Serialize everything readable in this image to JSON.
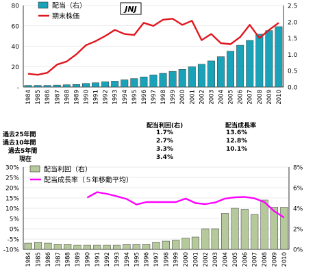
{
  "chart_data": [
    {
      "type": "bar+line",
      "badge": "JNJ",
      "categories": [
        "1984",
        "1985",
        "1986",
        "1987",
        "1988",
        "1989",
        "1990",
        "1991",
        "1992",
        "1993",
        "1994",
        "1995",
        "1996",
        "1997",
        "1998",
        "1999",
        "2000",
        "2001",
        "2002",
        "2003",
        "2004",
        "2005",
        "2006",
        "2007",
        "2008",
        "2009",
        "2010"
      ],
      "series": [
        {
          "name": "配当（右）",
          "type": "bar",
          "axis": "right",
          "values": [
            0.05,
            0.05,
            0.05,
            0.06,
            0.07,
            0.08,
            0.11,
            0.13,
            0.16,
            0.18,
            0.22,
            0.26,
            0.31,
            0.37,
            0.42,
            0.48,
            0.54,
            0.62,
            0.7,
            0.8,
            0.93,
            1.1,
            1.28,
            1.43,
            1.62,
            1.73,
            1.85
          ]
        },
        {
          "name": "期末株価",
          "type": "line",
          "axis": "left",
          "color": "#e0161e",
          "values": [
            13,
            12,
            14,
            22,
            25,
            32,
            41,
            45,
            50,
            56,
            52,
            51,
            63,
            60,
            66,
            67,
            61,
            65,
            46,
            52,
            43,
            42,
            49,
            61,
            48,
            56,
            63
          ]
        }
      ],
      "yleft": {
        "ticks": [
          "-",
          "20",
          "40",
          "60",
          "80"
        ],
        "ylim": [
          0,
          80
        ]
      },
      "yright": {
        "ticks": [
          "0.0",
          "0.5",
          "1.0",
          "1.5",
          "2.0",
          "2.5"
        ],
        "ylim": [
          0,
          2.5
        ]
      },
      "bar_color": "#1aa3b8"
    },
    {
      "type": "bar+line",
      "categories": [
        "1984",
        "1985",
        "1986",
        "1987",
        "1988",
        "1989",
        "1990",
        "1991",
        "1992",
        "1993",
        "1994",
        "1995",
        "1996",
        "1997",
        "1998",
        "1999",
        "2000",
        "2001",
        "2002",
        "2003",
        "2004",
        "2005",
        "2006",
        "2007",
        "2008",
        "2009",
        "2010"
      ],
      "series": [
        {
          "name": "配当利回（右）",
          "type": "bar",
          "axis": "right",
          "values": [
            0.6,
            0.7,
            0.6,
            0.5,
            0.5,
            0.4,
            0.4,
            0.4,
            0.4,
            0.4,
            0.5,
            0.5,
            0.5,
            0.7,
            0.8,
            0.9,
            1.1,
            1.2,
            2.0,
            2.0,
            3.5,
            4.0,
            3.9,
            3.4,
            4.8,
            4.1,
            4.1
          ]
        },
        {
          "name": "配当成長率（５年移動平均）",
          "type": "line",
          "axis": "left",
          "color": "#ff00ff",
          "values": [
            null,
            null,
            null,
            null,
            null,
            null,
            15.2,
            17.8,
            17.0,
            15.8,
            14.5,
            11.8,
            13.0,
            13.0,
            13.0,
            13.0,
            14.7,
            12.5,
            12.0,
            12.8,
            14.7,
            15.3,
            15.5,
            14.8,
            13.0,
            8.6,
            5.5
          ]
        }
      ],
      "yleft": {
        "ticks": [
          "-10%",
          "-5%",
          "0%",
          "5%",
          "10%",
          "15%",
          "20%",
          "25%",
          "30%"
        ],
        "ylim": [
          -10,
          30
        ]
      },
      "yright": {
        "ticks": [
          "0%",
          "2%",
          "4%",
          "6%",
          "8%"
        ],
        "ylim": [
          0,
          8
        ]
      },
      "bar_color": "#b5c99a"
    }
  ],
  "stats": {
    "headers": {
      "yield": "配当利回(右)",
      "growth": "配当成長率"
    },
    "rows": [
      {
        "label": "過去25年間",
        "yield": "1.7%",
        "growth": "13.6%"
      },
      {
        "label": "過去10年間",
        "yield": "2.7%",
        "growth": "12.8%"
      },
      {
        "label": "過去5年間",
        "yield": "3.3%",
        "growth": "10.1%"
      },
      {
        "label": "現在",
        "yield": "3.4%",
        "growth": ""
      }
    ]
  }
}
